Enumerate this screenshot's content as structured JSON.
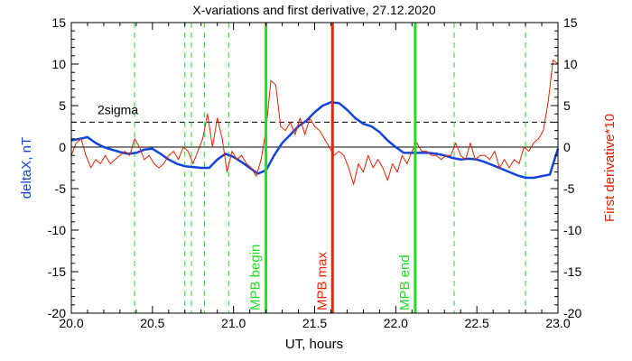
{
  "chart_data": {
    "type": "line",
    "title": "X-variations and first derivative, 27.12.2020",
    "xlabel": "UT, hours",
    "ylabel_left": "deltaX, nT",
    "ylabel_right": "First derivative*10",
    "xlim": [
      20.0,
      23.0
    ],
    "ylim": [
      -20,
      15
    ],
    "xticks": [
      20.0,
      20.5,
      21.0,
      21.5,
      22.0,
      22.5,
      23.0
    ],
    "xtick_labels": [
      "20.0",
      "20.5",
      "21.0",
      "21.5",
      "22.0",
      "22.5",
      "23.0"
    ],
    "yticks": [
      -20,
      -15,
      -10,
      -5,
      0,
      5,
      10,
      15
    ],
    "ytick_labels": [
      "-20",
      "-15",
      "-10",
      "-5",
      "0",
      "5",
      "10",
      "15"
    ],
    "threshold": {
      "label": "2sigma",
      "y": 3.0,
      "color": "#000000"
    },
    "zero_line": 0,
    "dashed_markers_x": [
      20.39,
      20.7,
      20.74,
      20.82,
      20.97,
      22.36,
      22.8
    ],
    "markers": [
      {
        "label": "MPB begin",
        "x": 21.2,
        "color": "#22dd22"
      },
      {
        "label": "MPB max",
        "x": 21.61,
        "color": "#ee2200"
      },
      {
        "label": "MPB end",
        "x": 22.12,
        "color": "#22dd22"
      }
    ],
    "series": [
      {
        "name": "deltaX",
        "color": "#1144dd",
        "x": [
          20.0,
          20.05,
          20.1,
          20.15,
          20.2,
          20.25,
          20.3,
          20.35,
          20.4,
          20.45,
          20.5,
          20.55,
          20.6,
          20.65,
          20.7,
          20.75,
          20.8,
          20.85,
          20.9,
          20.95,
          21.0,
          21.05,
          21.1,
          21.15,
          21.2,
          21.25,
          21.3,
          21.35,
          21.4,
          21.45,
          21.5,
          21.55,
          21.6,
          21.65,
          21.7,
          21.75,
          21.8,
          21.85,
          21.9,
          21.95,
          22.0,
          22.05,
          22.1,
          22.15,
          22.2,
          22.25,
          22.3,
          22.35,
          22.4,
          22.45,
          22.5,
          22.55,
          22.6,
          22.65,
          22.7,
          22.75,
          22.8,
          22.85,
          22.9,
          22.95,
          23.0
        ],
        "values": [
          0.8,
          1.0,
          1.2,
          0.5,
          0.0,
          -0.3,
          -0.6,
          -0.8,
          -0.7,
          -0.3,
          -0.2,
          -0.8,
          -1.5,
          -2.0,
          -2.3,
          -2.4,
          -2.5,
          -2.5,
          -1.5,
          -0.8,
          -1.2,
          -1.8,
          -2.5,
          -3.2,
          -2.8,
          -1.0,
          0.5,
          1.5,
          2.5,
          3.2,
          4.2,
          5.0,
          5.4,
          5.3,
          4.5,
          3.5,
          2.8,
          2.5,
          1.8,
          0.8,
          0.0,
          -0.7,
          -0.7,
          -0.7,
          -0.7,
          -0.8,
          -1.0,
          -1.3,
          -1.5,
          -1.4,
          -1.5,
          -1.8,
          -2.2,
          -2.6,
          -3.0,
          -3.4,
          -3.7,
          -3.7,
          -3.5,
          -3.3,
          -0.2
        ]
      },
      {
        "name": "First derivative*10",
        "color": "#dd2200",
        "x": [
          20.0,
          20.03,
          20.06,
          20.09,
          20.12,
          20.15,
          20.18,
          20.21,
          20.24,
          20.27,
          20.3,
          20.33,
          20.36,
          20.39,
          20.42,
          20.45,
          20.48,
          20.51,
          20.54,
          20.57,
          20.6,
          20.63,
          20.66,
          20.69,
          20.72,
          20.75,
          20.78,
          20.81,
          20.84,
          20.87,
          20.9,
          20.93,
          20.96,
          20.99,
          21.02,
          21.05,
          21.08,
          21.11,
          21.14,
          21.17,
          21.2,
          21.23,
          21.26,
          21.29,
          21.32,
          21.35,
          21.38,
          21.41,
          21.44,
          21.47,
          21.5,
          21.53,
          21.56,
          21.59,
          21.62,
          21.65,
          21.68,
          21.71,
          21.74,
          21.77,
          21.8,
          21.83,
          21.86,
          21.89,
          21.92,
          21.95,
          21.98,
          22.01,
          22.04,
          22.07,
          22.1,
          22.13,
          22.16,
          22.19,
          22.22,
          22.25,
          22.28,
          22.31,
          22.34,
          22.37,
          22.4,
          22.43,
          22.46,
          22.49,
          22.52,
          22.55,
          22.58,
          22.61,
          22.64,
          22.67,
          22.7,
          22.73,
          22.76,
          22.79,
          22.82,
          22.85,
          22.88,
          22.91,
          22.94,
          22.97,
          23.0
        ],
        "values": [
          -1.0,
          0.5,
          1.0,
          -1.0,
          -2.5,
          -1.5,
          -2.0,
          -1.0,
          -2.0,
          -1.5,
          -1.0,
          -0.5,
          -1.0,
          1.0,
          0.0,
          -1.5,
          -1.0,
          -2.0,
          -2.5,
          -2.0,
          -1.0,
          -0.5,
          -1.5,
          0.0,
          -0.5,
          -2.0,
          -0.5,
          1.0,
          4.0,
          0.0,
          3.5,
          1.0,
          -3.0,
          -0.5,
          -1.5,
          -1.0,
          -2.0,
          -2.5,
          -3.5,
          -1.5,
          2.0,
          8.0,
          7.5,
          2.5,
          2.0,
          3.0,
          1.5,
          3.5,
          1.5,
          3.5,
          2.5,
          2.0,
          1.0,
          0.0,
          -1.0,
          -0.5,
          -1.0,
          -2.5,
          -4.5,
          -2.0,
          -3.0,
          -1.0,
          -2.5,
          -1.5,
          -2.5,
          -4.0,
          -2.0,
          -3.0,
          -1.0,
          -2.0,
          -0.5,
          0.5,
          -0.5,
          -0.5,
          -1.0,
          -1.0,
          -1.5,
          -1.0,
          -1.0,
          0.5,
          -1.0,
          -1.5,
          0.5,
          -1.5,
          -1.0,
          -1.0,
          -1.5,
          -0.5,
          -2.5,
          -1.5,
          -2.5,
          -1.5,
          -2.0,
          0.0,
          -0.5,
          0.5,
          1.0,
          2.0,
          5.5,
          10.5,
          10.0
        ]
      }
    ]
  }
}
